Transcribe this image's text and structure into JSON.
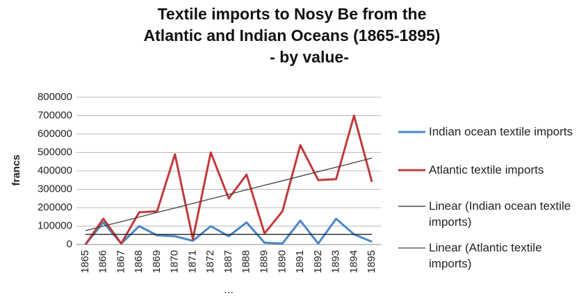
{
  "chart_data": {
    "type": "line",
    "title_lines": [
      "Textile imports to Nosy Be from the",
      "Atlantic and Indian Oceans  (1865-1895)",
      "- by value-"
    ],
    "y_label": "francs",
    "annotation": "…",
    "categories": [
      "1865",
      "1866",
      "1867",
      "1868",
      "1869",
      "1870",
      "1871",
      "1872",
      "1887",
      "1888",
      "1889",
      "1890",
      "1891",
      "1892",
      "1893",
      "1894",
      "1895"
    ],
    "series": [
      {
        "name": "Indian ocean textile imports",
        "color": "#4a86c8",
        "width": 3,
        "values": [
          0,
          120000,
          5000,
          100000,
          50000,
          45000,
          20000,
          100000,
          45000,
          120000,
          10000,
          5000,
          130000,
          5000,
          140000,
          55000,
          15000
        ]
      },
      {
        "name": "Atlantic textile imports",
        "color": "#c0393b",
        "width": 3,
        "values": [
          0,
          140000,
          5000,
          175000,
          180000,
          490000,
          30000,
          500000,
          250000,
          380000,
          60000,
          180000,
          540000,
          350000,
          355000,
          700000,
          340000
        ]
      },
      {
        "name": "Linear (Indian ocean textile imports)",
        "color": "#222222",
        "width": 1.3,
        "values": [
          55000,
          55000,
          55000,
          55000,
          55000,
          55000,
          55000,
          55000,
          55000,
          55000,
          55000,
          55000,
          55000,
          55000,
          55000,
          55000,
          55000
        ]
      },
      {
        "name": "Linear (Atlantic textile imports)",
        "color": "#444444",
        "width": 1.3,
        "values": [
          75000,
          100000,
          124000,
          149000,
          174000,
          198000,
          223000,
          248000,
          272000,
          297000,
          322000,
          346000,
          371000,
          396000,
          420000,
          445000,
          470000
        ]
      }
    ],
    "ylim": [
      0,
      800000
    ],
    "yticks": [
      0,
      100000,
      200000,
      300000,
      400000,
      500000,
      600000,
      700000,
      800000
    ],
    "grid": true,
    "legend": "right"
  }
}
